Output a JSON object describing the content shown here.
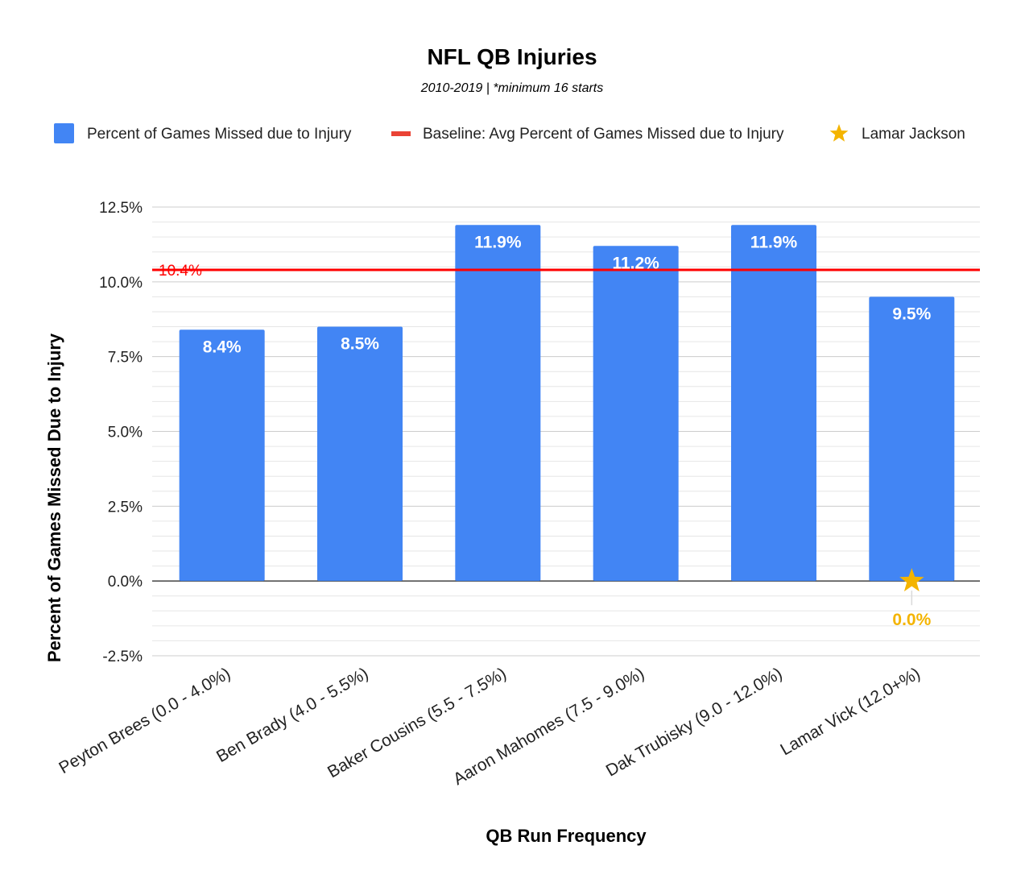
{
  "chart_data": {
    "type": "bar",
    "title": "NFL QB Injuries",
    "subtitle": "2010-2019 | *minimum 16 starts",
    "xlabel": "QB Run Frequency",
    "ylabel": "Percent of Games Missed Due to Injury",
    "ylim": [
      -2.5,
      12.5
    ],
    "yticks": [
      12.5,
      10.0,
      7.5,
      5.0,
      2.5,
      0.0,
      -2.5
    ],
    "ytick_labels": [
      "12.5%",
      "10.0%",
      "7.5%",
      "5.0%",
      "2.5%",
      "0.0%",
      "-2.5%"
    ],
    "categories": [
      "Peyton Brees (0.0 - 4.0%)",
      "Ben Brady (4.0 - 5.5%)",
      "Baker Cousins (5.5 - 7.5%)",
      "Aaron Mahomes (7.5 - 9.0%)",
      "Dak Trubisky (9.0 - 12.0%)",
      "Lamar Vick (12.0+%)"
    ],
    "series": [
      {
        "name": "Percent of Games Missed due to Injury",
        "kind": "bar",
        "color": "#4285f4",
        "values": [
          8.4,
          8.5,
          11.9,
          11.2,
          11.9,
          9.5
        ],
        "labels": [
          "8.4%",
          "8.5%",
          "11.9%",
          "11.2%",
          "11.9%",
          "9.5%"
        ]
      },
      {
        "name": "Baseline: Avg Percent of Games Missed due to Injury",
        "kind": "line",
        "color": "#ff0000",
        "legend_color": "#ea4335",
        "value": 10.4,
        "label": "10.4%"
      },
      {
        "name": "Lamar Jackson",
        "kind": "marker",
        "color": "#f4b400",
        "category_index": 5,
        "value": 0.0,
        "label": "0.0%"
      }
    ],
    "legend_position": "top",
    "grid": true
  }
}
